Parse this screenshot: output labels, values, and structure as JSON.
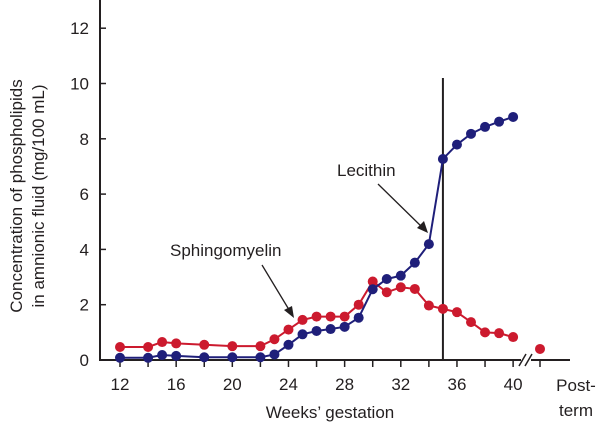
{
  "chart_data": {
    "type": "line",
    "xlabel": "Weeks’ gestation",
    "ylabel": [
      "Concentration of phospholipids",
      "in amnionic fluid (mg/100 mL)"
    ],
    "ylim": [
      0,
      13
    ],
    "xlim": [
      12,
      40
    ],
    "yticks": [
      "0",
      "2",
      "4",
      "6",
      "8",
      "10",
      "12"
    ],
    "xticks": [
      "12",
      "16",
      "20",
      "24",
      "28",
      "32",
      "36",
      "40"
    ],
    "post_term_label": [
      "Post-",
      "term"
    ],
    "grid": false,
    "vertical_marker_week": 35,
    "colors": {
      "lecithin": "#1f1f7a",
      "sphingomyelin": "#cc1a2e"
    },
    "series": [
      {
        "name": "Sphingomyelin",
        "x": [
          12,
          14,
          15,
          16,
          18,
          20,
          22,
          23,
          24,
          25,
          26,
          27,
          28,
          29,
          30,
          31,
          32,
          33,
          34,
          35,
          36,
          37,
          38,
          39,
          40
        ],
        "y": [
          0.47,
          0.47,
          0.65,
          0.6,
          0.55,
          0.5,
          0.5,
          0.75,
          1.1,
          1.45,
          1.57,
          1.57,
          1.57,
          2.0,
          2.84,
          2.45,
          2.63,
          2.57,
          1.97,
          1.85,
          1.73,
          1.37,
          1.0,
          0.97,
          0.83
        ],
        "post_term": 0.4
      },
      {
        "name": "Lecithin",
        "x": [
          12,
          14,
          15,
          16,
          18,
          20,
          22,
          23,
          24,
          25,
          26,
          27,
          28,
          29,
          30,
          31,
          32,
          33,
          34,
          35,
          36,
          37,
          38,
          39,
          40
        ],
        "y": [
          0.08,
          0.08,
          0.18,
          0.15,
          0.1,
          0.1,
          0.1,
          0.2,
          0.55,
          0.93,
          1.05,
          1.12,
          1.2,
          1.53,
          2.56,
          2.93,
          3.05,
          3.52,
          4.19,
          7.27,
          7.79,
          8.18,
          8.43,
          8.62,
          8.79
        ]
      }
    ],
    "annotations": {
      "sphingomyelin": "Sphingomyelin",
      "lecithin": "Lecithin"
    }
  }
}
